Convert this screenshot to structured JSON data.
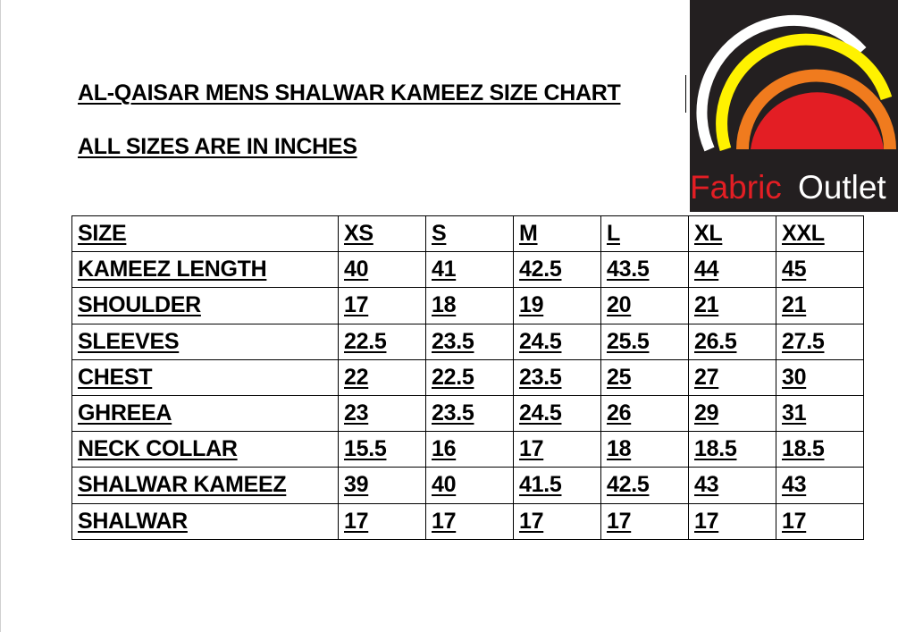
{
  "heading": {
    "title": "AL-QAISAR MENS SHALWAR KAMEEZ SIZE CHART",
    "subtitle": "ALL SIZES ARE IN INCHES"
  },
  "logo": {
    "text_red": "Fabric",
    "text_white": "Outlet",
    "colors": {
      "background": "#231f20",
      "red": "#e31e24",
      "orange": "#f07b1e",
      "yellow": "#fff200",
      "white": "#ffffff"
    }
  },
  "table": {
    "header": [
      "SIZE",
      "XS",
      "S",
      "M",
      "L",
      "XL",
      "XXL"
    ],
    "rows": [
      {
        "label": "KAMEEZ LENGTH",
        "values": [
          "40",
          "41",
          "42.5",
          "43.5",
          "44",
          "45"
        ]
      },
      {
        "label": "SHOULDER",
        "values": [
          "17",
          "18",
          "19",
          "20",
          "21",
          "21"
        ]
      },
      {
        "label": "SLEEVES",
        "values": [
          "22.5",
          "23.5",
          "24.5",
          "25.5",
          "26.5",
          "27.5"
        ]
      },
      {
        "label": "CHEST",
        "values": [
          "22",
          "22.5",
          "23.5",
          "25",
          "27",
          "30"
        ]
      },
      {
        "label": "GHREEA",
        "values": [
          "23",
          "23.5",
          "24.5",
          "26",
          "29",
          "31"
        ]
      },
      {
        "label": "NECK COLLAR",
        "values": [
          "15.5",
          "16",
          "17",
          "18",
          "18.5",
          "18.5"
        ]
      },
      {
        "label": "SHALWAR KAMEEZ",
        "values": [
          "39",
          "40",
          "41.5",
          "42.5",
          "43",
          "43"
        ]
      },
      {
        "label": "SHALWAR",
        "values": [
          "17",
          "17",
          "17",
          "17",
          "17",
          "17"
        ]
      }
    ]
  }
}
